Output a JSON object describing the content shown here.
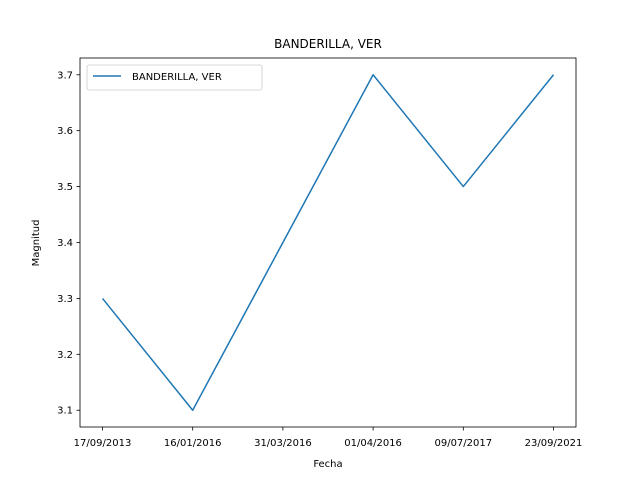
{
  "chart_data": {
    "type": "line",
    "title": "BANDERILLA, VER",
    "xlabel": "Fecha",
    "ylabel": "Magnitud",
    "categories": [
      "17/09/2013",
      "16/01/2016",
      "31/03/2016",
      "01/04/2016",
      "09/07/2017",
      "23/09/2021"
    ],
    "series": [
      {
        "name": "BANDERILLA, VER",
        "values": [
          3.3,
          3.1,
          3.4,
          3.7,
          3.5,
          3.7
        ],
        "color": "#1f77b4"
      }
    ],
    "ylim": [
      3.07,
      3.73
    ],
    "yticks": [
      3.1,
      3.2,
      3.3,
      3.4,
      3.5,
      3.6,
      3.7
    ],
    "ytick_labels": [
      "3.1",
      "3.2",
      "3.3",
      "3.4",
      "3.5",
      "3.6",
      "3.7"
    ],
    "grid": false,
    "legend_placement": "top-left"
  }
}
